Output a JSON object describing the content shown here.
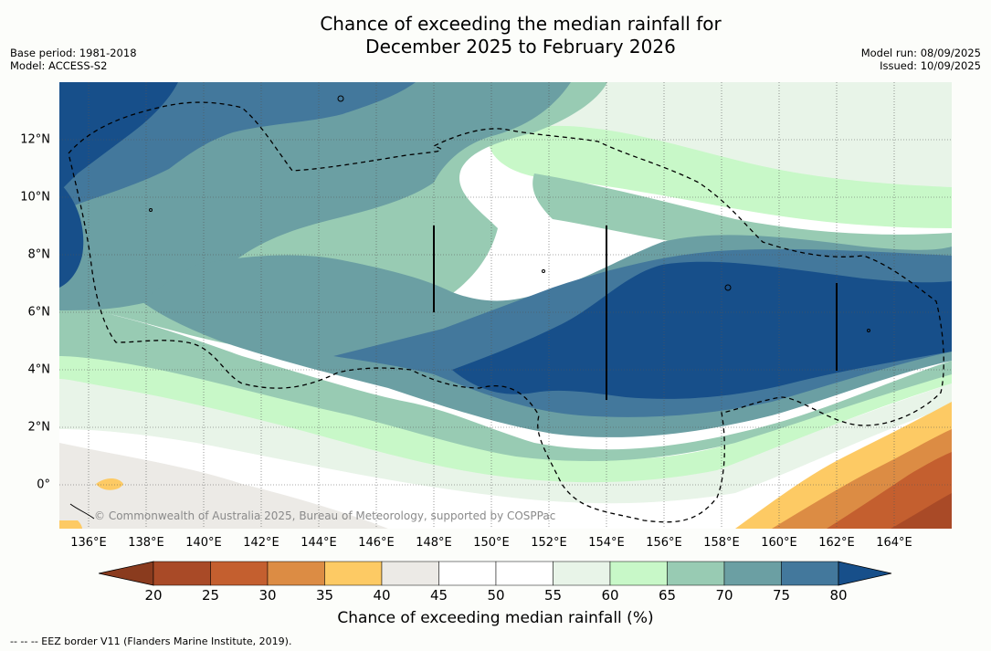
{
  "title_line1": "Chance of exceeding the median rainfall for",
  "title_line2": "December 2025 to February 2026",
  "base_period": "Base period: 1981-2018",
  "model": "Model: ACCESS-S2",
  "model_run": "Model run: 08/09/2025",
  "issued": "Issued: 10/09/2025",
  "lat_labels": [
    "12°N",
    "10°N",
    "8°N",
    "6°N",
    "4°N",
    "2°N",
    "0°"
  ],
  "lon_labels": [
    "136°E",
    "138°E",
    "140°E",
    "142°E",
    "144°E",
    "146°E",
    "148°E",
    "150°E",
    "152°E",
    "154°E",
    "156°E",
    "158°E",
    "160°E",
    "162°E",
    "164°E"
  ],
  "credit": "© Commonwealth of Australia 2025, Bureau of Meteorology, supported by COSPPac",
  "colorbar": {
    "ticks": [
      "20",
      "25",
      "30",
      "35",
      "40",
      "45",
      "50",
      "55",
      "60",
      "65",
      "70",
      "75",
      "80"
    ],
    "label": "Chance of exceeding median rainfall (%)",
    "colors": [
      "#8a3b1e",
      "#a94a27",
      "#c45f2f",
      "#dc8c44",
      "#fdca64",
      "#eceae6",
      "#ffffff",
      "#ffffff",
      "#e8f4e8",
      "#c8f8c8",
      "#98cbb3",
      "#6b9fa3",
      "#43789c",
      "#174f8a"
    ]
  },
  "footnote": "-- -- -- EEZ border V11 (Flanders Marine Institute, 2019).",
  "map": {
    "lon_range": [
      135,
      166
    ],
    "lat_range": [
      -1.5,
      14
    ],
    "colors": {
      "below_40": "#fdca64",
      "below_35": "#dc8c44",
      "below_30": "#c45f2f",
      "below_25": "#a94a27",
      "band_40_45": "#eceae6",
      "band_45_55": "#ffffff",
      "band_55_60": "#e8f4e8",
      "band_60_65": "#c8f8c8",
      "band_65_70": "#98cbb3",
      "band_70_75": "#6b9fa3",
      "band_75_80": "#43789c",
      "above_80": "#174f8a"
    }
  }
}
